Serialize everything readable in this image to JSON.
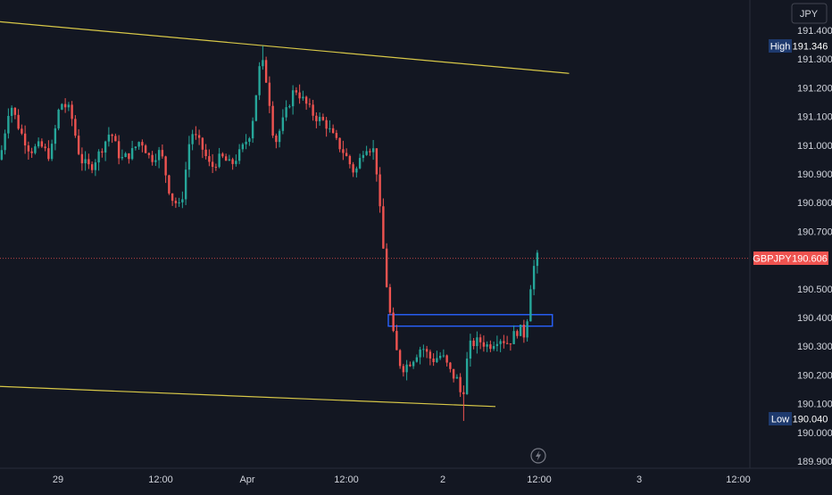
{
  "colors": {
    "background": "#131722",
    "grid": "#1f2330",
    "up": "#26a69a",
    "down": "#ef5350",
    "axis_text": "#d1d4dc",
    "trendline": "#d8c848",
    "zone": "#2962ff",
    "price_line": "#ef5350"
  },
  "instrument": {
    "symbol": "GBPJPY",
    "last_price": "190.606",
    "currency": "JPY"
  },
  "badges": {
    "high": {
      "label": "High",
      "value": "191.346"
    },
    "low": {
      "label": "Low",
      "value": "190.040"
    }
  },
  "chart_data": {
    "type": "candlestick",
    "y_ticks": [
      "191.400",
      "191.300",
      "191.200",
      "191.100",
      "191.000",
      "190.900",
      "190.800",
      "190.700",
      "190.500",
      "190.400",
      "190.300",
      "190.200",
      "190.100",
      "190.000",
      "189.900"
    ],
    "x_ticks": [
      "29",
      "12:00",
      "Apr",
      "12:00",
      "2",
      "12:00",
      "3",
      "12:00"
    ],
    "ylim": [
      189.88,
      191.48
    ],
    "grid": false,
    "session_high": 191.346,
    "session_low": 190.04,
    "last_price": 190.606,
    "resistance_trendline": [
      [
        0,
        191.43
      ],
      [
        170,
        191.25
      ]
    ],
    "support_trendline": [
      [
        0,
        190.16
      ],
      [
        148,
        190.09
      ]
    ],
    "demand_zone": {
      "x_start": 116,
      "x_end": 165,
      "y_low": 190.37,
      "y_high": 190.41
    },
    "price_path": [
      [
        0,
        190.95
      ],
      [
        3,
        191.15
      ],
      [
        6,
        191.05
      ],
      [
        9,
        190.98
      ],
      [
        12,
        191.0
      ],
      [
        15,
        190.96
      ],
      [
        18,
        191.15
      ],
      [
        21,
        191.12
      ],
      [
        24,
        190.95
      ],
      [
        27,
        190.92
      ],
      [
        30,
        190.98
      ],
      [
        33,
        191.05
      ],
      [
        36,
        190.95
      ],
      [
        39,
        190.97
      ],
      [
        42,
        191.02
      ],
      [
        45,
        190.95
      ],
      [
        48,
        190.98
      ],
      [
        51,
        190.82
      ],
      [
        54,
        190.78
      ],
      [
        57,
        191.05
      ],
      [
        60,
        191.0
      ],
      [
        63,
        190.92
      ],
      [
        66,
        190.96
      ],
      [
        69,
        190.93
      ],
      [
        72,
        190.98
      ],
      [
        75,
        191.05
      ],
      [
        78,
        191.31
      ],
      [
        80,
        191.2
      ],
      [
        82,
        191.0
      ],
      [
        85,
        191.1
      ],
      [
        88,
        191.2
      ],
      [
        91,
        191.15
      ],
      [
        94,
        191.1
      ],
      [
        97,
        191.08
      ],
      [
        100,
        191.02
      ],
      [
        103,
        190.97
      ],
      [
        106,
        190.9
      ],
      [
        109,
        191.0
      ],
      [
        112,
        190.98
      ],
      [
        114,
        190.7
      ],
      [
        116,
        190.45
      ],
      [
        118,
        190.3
      ],
      [
        120,
        190.22
      ],
      [
        123,
        190.25
      ],
      [
        126,
        190.3
      ],
      [
        129,
        190.25
      ],
      [
        132,
        190.27
      ],
      [
        135,
        190.2
      ],
      [
        137,
        190.18
      ],
      [
        138,
        190.1
      ],
      [
        140,
        190.3
      ],
      [
        143,
        190.32
      ],
      [
        146,
        190.3
      ],
      [
        149,
        190.33
      ],
      [
        152,
        190.31
      ],
      [
        154,
        190.35
      ],
      [
        156,
        190.36
      ],
      [
        157,
        190.32
      ],
      [
        158,
        190.48
      ],
      [
        160,
        190.61
      ]
    ]
  }
}
